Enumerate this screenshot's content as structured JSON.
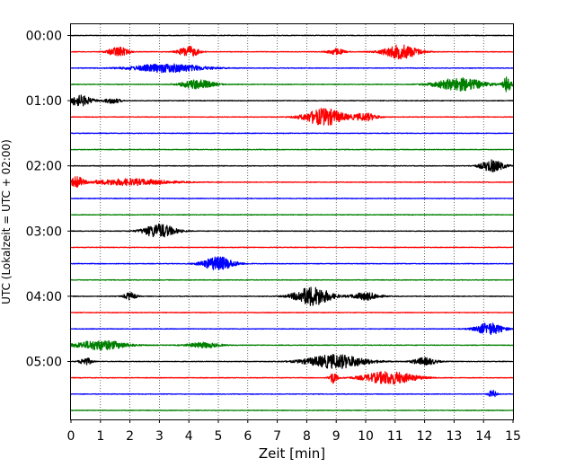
{
  "chart_data": {
    "type": "line",
    "title": "",
    "xlabel": "Zeit  [min]",
    "ylabel": "UTC (Lokalzeit = UTC + 02:00)",
    "xlim": [
      0,
      15
    ],
    "xticks": [
      0,
      1,
      2,
      3,
      4,
      5,
      6,
      7,
      8,
      9,
      10,
      11,
      12,
      13,
      14,
      15
    ],
    "xtick_labels": [
      "0",
      "1",
      "2",
      "3",
      "4",
      "5",
      "6",
      "7",
      "8",
      "9",
      "10",
      "11",
      "12",
      "13",
      "14",
      "15"
    ],
    "yticks": [
      "00:00",
      "01:00",
      "02:00",
      "03:00",
      "04:00",
      "05:00"
    ],
    "vertical_grid": true,
    "trace_interval_min": 15,
    "trace_colors": [
      "#000000",
      "#ff0000",
      "#0000ff",
      "#008000"
    ],
    "traces": [
      {
        "start": "00:00",
        "color": "#000000",
        "bursts": []
      },
      {
        "start": "00:15",
        "color": "#ff0000",
        "bursts": [
          [
            1.6,
            0.5,
            0.9
          ],
          [
            4.0,
            0.5,
            1.0
          ],
          [
            9.0,
            0.4,
            0.6
          ],
          [
            11.2,
            0.9,
            1.3
          ]
        ]
      },
      {
        "start": "00:30",
        "color": "#0000ff",
        "bursts": [
          [
            3.3,
            1.8,
            0.8
          ]
        ]
      },
      {
        "start": "00:45",
        "color": "#008000",
        "bursts": [
          [
            4.3,
            0.8,
            0.9
          ],
          [
            13.2,
            1.2,
            1.2
          ],
          [
            14.8,
            0.2,
            1.5
          ]
        ]
      },
      {
        "start": "01:00",
        "color": "#000000",
        "bursts": [
          [
            0.3,
            0.6,
            1.0
          ],
          [
            1.4,
            0.4,
            0.5
          ]
        ]
      },
      {
        "start": "01:15",
        "color": "#ff0000",
        "bursts": [
          [
            8.6,
            1.0,
            1.6
          ],
          [
            10.0,
            0.6,
            0.7
          ]
        ]
      },
      {
        "start": "01:30",
        "color": "#0000ff",
        "bursts": []
      },
      {
        "start": "01:45",
        "color": "#008000",
        "bursts": []
      },
      {
        "start": "02:00",
        "color": "#000000",
        "bursts": [
          [
            14.3,
            0.6,
            1.1
          ]
        ]
      },
      {
        "start": "02:15",
        "color": "#ff0000",
        "bursts": [
          [
            0.2,
            0.3,
            1.0
          ],
          [
            2.0,
            2.0,
            0.6
          ]
        ]
      },
      {
        "start": "02:30",
        "color": "#0000ff",
        "bursts": []
      },
      {
        "start": "02:45",
        "color": "#008000",
        "bursts": []
      },
      {
        "start": "03:00",
        "color": "#000000",
        "bursts": [
          [
            3.0,
            0.8,
            1.3
          ]
        ]
      },
      {
        "start": "03:15",
        "color": "#ff0000",
        "bursts": []
      },
      {
        "start": "03:30",
        "color": "#0000ff",
        "bursts": [
          [
            5.0,
            0.8,
            1.3
          ]
        ]
      },
      {
        "start": "03:45",
        "color": "#008000",
        "bursts": []
      },
      {
        "start": "04:00",
        "color": "#000000",
        "bursts": [
          [
            2.0,
            0.3,
            0.7
          ],
          [
            8.2,
            0.9,
            1.8
          ],
          [
            10.0,
            0.7,
            0.7
          ]
        ]
      },
      {
        "start": "04:15",
        "color": "#ff0000",
        "bursts": []
      },
      {
        "start": "04:30",
        "color": "#0000ff",
        "bursts": [
          [
            14.2,
            0.7,
            1.1
          ]
        ]
      },
      {
        "start": "04:45",
        "color": "#008000",
        "bursts": [
          [
            1.0,
            1.3,
            0.9
          ],
          [
            4.5,
            0.8,
            0.5
          ]
        ]
      },
      {
        "start": "05:00",
        "color": "#000000",
        "bursts": [
          [
            0.5,
            0.3,
            0.7
          ],
          [
            9.0,
            1.5,
            1.3
          ],
          [
            12.0,
            0.6,
            0.7
          ]
        ]
      },
      {
        "start": "05:15",
        "color": "#ff0000",
        "bursts": [
          [
            8.9,
            0.2,
            1.0
          ],
          [
            10.8,
            1.3,
            1.2
          ]
        ]
      },
      {
        "start": "05:30",
        "color": "#0000ff",
        "bursts": [
          [
            14.3,
            0.2,
            0.7
          ]
        ]
      },
      {
        "start": "05:45",
        "color": "#008000",
        "bursts": []
      }
    ]
  }
}
